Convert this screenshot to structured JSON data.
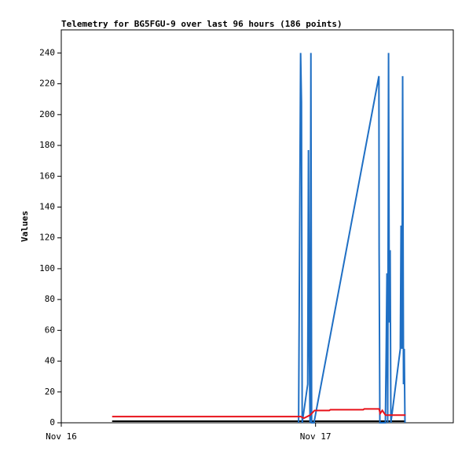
{
  "chart_data": {
    "type": "line",
    "title": "Telemetry for BG5FGU-9 over last 96 hours (186 points)",
    "y_label": "Values",
    "xlim": [
      0,
      37
    ],
    "xticks": [
      {
        "value": 0,
        "label": "Nov 16"
      },
      {
        "value": 24,
        "label": "Nov 17"
      }
    ],
    "ylim": [
      0,
      255
    ],
    "yticks": [
      0,
      20,
      40,
      60,
      80,
      100,
      120,
      140,
      160,
      180,
      200,
      220,
      240
    ],
    "grid": false,
    "series": [
      {
        "color": "#000000",
        "x": [
          4.8,
          32.5
        ],
        "values": [
          1,
          1
        ]
      },
      {
        "color": "#1f6fc4",
        "x": [
          22.4,
          22.59,
          22.67,
          22.74,
          23.26,
          23.33,
          23.41,
          23.48,
          23.56,
          23.63,
          23.85,
          29.98,
          30.0,
          30.07,
          30.59,
          30.67,
          30.74,
          30.81,
          30.89,
          30.96,
          31.04,
          31.11,
          32.0,
          32.07,
          32.15,
          32.22,
          32.3,
          32.37,
          32.44
        ],
        "values": [
          0,
          240,
          208,
          0,
          25,
          177,
          48,
          0,
          240,
          0,
          0,
          225,
          112,
          0,
          0,
          48,
          97,
          0,
          240,
          65,
          112,
          0,
          48,
          128,
          48,
          225,
          25,
          48,
          0
        ]
      },
      {
        "color": "#e8121a",
        "x": [
          4.8,
          22.6,
          22.9,
          23.5,
          23.9,
          25.3,
          25.4,
          28.5,
          28.6,
          30.0,
          30.1,
          30.3,
          30.6,
          32.5
        ],
        "values": [
          4,
          4,
          3,
          5,
          8,
          8,
          8.5,
          8.5,
          9,
          9,
          6,
          8,
          5,
          5
        ]
      }
    ]
  }
}
